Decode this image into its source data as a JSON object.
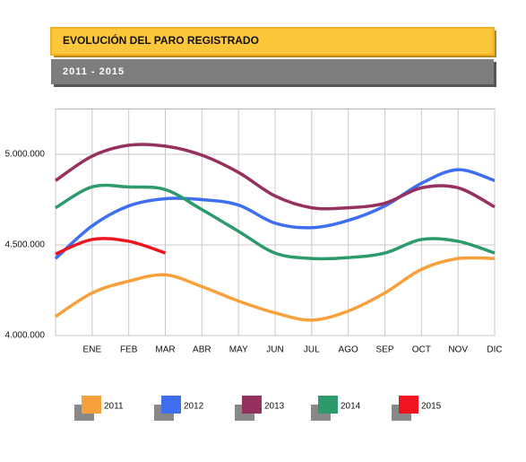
{
  "chart_data": {
    "type": "line",
    "title": "EVOLUCIÓN DEL PARO REGISTRADO",
    "subtitle": "2011 - 2015",
    "categories": [
      null,
      "ENE",
      "FEB",
      "MAR",
      "ABR",
      "MAY",
      "JUN",
      "JUL",
      "AGO",
      "SEP",
      "OCT",
      "NOV",
      "DIC"
    ],
    "series": [
      {
        "name": "2011",
        "color": "#f7a03c",
        "values": [
          4105000,
          4235000,
          4300000,
          4335000,
          4270000,
          4190000,
          4125000,
          4085000,
          4135000,
          4235000,
          4365000,
          4425000,
          4425000
        ]
      },
      {
        "name": "2012",
        "color": "#3f6ef0",
        "values": [
          4425000,
          4605000,
          4715000,
          4755000,
          4750000,
          4720000,
          4620000,
          4595000,
          4635000,
          4715000,
          4840000,
          4915000,
          4855000
        ]
      },
      {
        "name": "2013",
        "color": "#96305f",
        "values": [
          4855000,
          4990000,
          5050000,
          5045000,
          4995000,
          4900000,
          4770000,
          4705000,
          4705000,
          4730000,
          4815000,
          4815000,
          4710000
        ]
      },
      {
        "name": "2014",
        "color": "#2c9a6a",
        "values": [
          4705000,
          4820000,
          4820000,
          4805000,
          4695000,
          4575000,
          4455000,
          4425000,
          4430000,
          4455000,
          4530000,
          4520000,
          4455000
        ]
      },
      {
        "name": "2015",
        "color": "#f0141e",
        "values": [
          4450000,
          4530000,
          4520000,
          4455000,
          null,
          null,
          null,
          null,
          null,
          null,
          null,
          null,
          null
        ]
      }
    ],
    "ylim": [
      4000000,
      5250000
    ],
    "yticks": [
      {
        "value": 4000000,
        "label": "4.000.000"
      },
      {
        "value": 4500000,
        "label": "4.500.000"
      },
      {
        "value": 5000000,
        "label": "5.000.000"
      }
    ],
    "grid": true
  }
}
